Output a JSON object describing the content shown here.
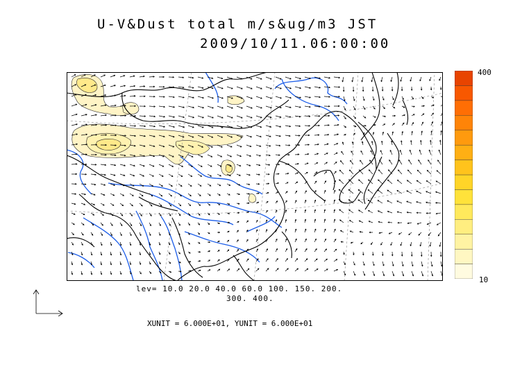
{
  "title": "U-V&Dust total m/s&ug/m3 JST",
  "datetime": "2009/10/11.06:00:00",
  "legend": {
    "levels_line1": "lev= 10.0 20.0 40.0 60.0 100. 150. 200.",
    "levels_line2": "300. 400.",
    "levels": [
      10,
      20,
      40,
      60,
      100,
      150,
      200,
      300,
      400
    ],
    "colorbar_max_label": "400",
    "colorbar_min_label": "10",
    "colors": [
      "#fffbe0",
      "#fff7c2",
      "#fff3a3",
      "#ffee80",
      "#ffe95c",
      "#ffe23a",
      "#ffd528",
      "#ffc31c",
      "#ffaf14",
      "#ff9a0e",
      "#ff8408",
      "#ff6e04",
      "#f85800",
      "#e84400"
    ]
  },
  "unit_line": "XUNIT = 6.000E+01, YUNIT = 6.000E+01",
  "colors": {
    "river": "#1a5ce8",
    "coast": "#000000",
    "dust_fill": "#fff4c6",
    "dust_core": "#ffe98a"
  }
}
